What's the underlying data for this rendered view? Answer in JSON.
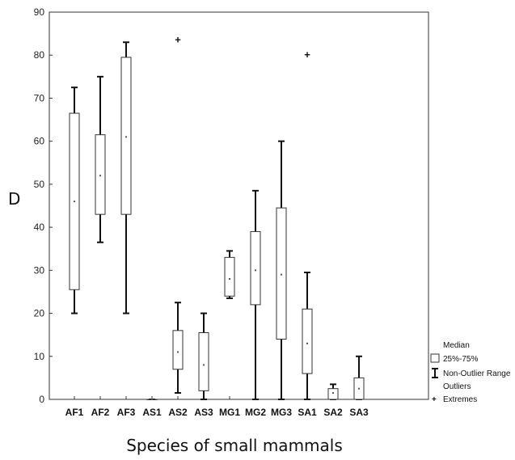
{
  "chart_data": {
    "type": "boxplot",
    "title": "",
    "xlabel": "Species of small mammals",
    "ylabel": "D",
    "ylim": [
      0,
      90
    ],
    "yticks": [
      0,
      10,
      20,
      30,
      40,
      50,
      60,
      70,
      80,
      90
    ],
    "grid": false,
    "legend_position": "right",
    "categories": [
      "AF1",
      "AF2",
      "AF3",
      "AS1",
      "AS2",
      "AS3",
      "MG1",
      "MG2",
      "MG3",
      "SA1",
      "SA2",
      "SA3"
    ],
    "boxes": [
      {
        "name": "AF1",
        "min": 20,
        "q1": 25.5,
        "median": 46,
        "q3": 66.5,
        "max": 72.5,
        "extremes": []
      },
      {
        "name": "AF2",
        "min": 36.5,
        "q1": 43,
        "median": 52,
        "q3": 61.5,
        "max": 75,
        "extremes": []
      },
      {
        "name": "AF3",
        "min": 20,
        "q1": 43,
        "median": 61,
        "q3": 79.5,
        "max": 83,
        "extremes": []
      },
      {
        "name": "AS1",
        "min": 0,
        "q1": 0,
        "median": 0,
        "q3": 0,
        "max": 0,
        "extremes": []
      },
      {
        "name": "AS2",
        "min": 1.5,
        "q1": 7,
        "median": 11,
        "q3": 16,
        "max": 22.5,
        "extremes": [
          83.5
        ]
      },
      {
        "name": "AS3",
        "min": 0,
        "q1": 2,
        "median": 8,
        "q3": 15.5,
        "max": 20,
        "extremes": []
      },
      {
        "name": "MG1",
        "min": 23.5,
        "q1": 24,
        "median": 28,
        "q3": 33,
        "max": 34.5,
        "extremes": []
      },
      {
        "name": "MG2",
        "min": 0,
        "q1": 22,
        "median": 30,
        "q3": 39,
        "max": 48.5,
        "extremes": []
      },
      {
        "name": "MG3",
        "min": 0,
        "q1": 14,
        "median": 29,
        "q3": 44.5,
        "max": 60,
        "extremes": []
      },
      {
        "name": "SA1",
        "min": 0,
        "q1": 6,
        "median": 13,
        "q3": 21,
        "max": 29.5,
        "extremes": [
          80
        ]
      },
      {
        "name": "SA2",
        "min": 0,
        "q1": 0,
        "median": 1.5,
        "q3": 2.5,
        "max": 3.5,
        "extremes": []
      },
      {
        "name": "SA3",
        "min": 0,
        "q1": 0,
        "median": 2.5,
        "q3": 5,
        "max": 10,
        "extremes": []
      }
    ],
    "legend": {
      "median": "Median",
      "box": "25%-75%",
      "range": "Non-Outlier Range",
      "outliers": "Outliers",
      "extremes": "Extremes"
    }
  }
}
